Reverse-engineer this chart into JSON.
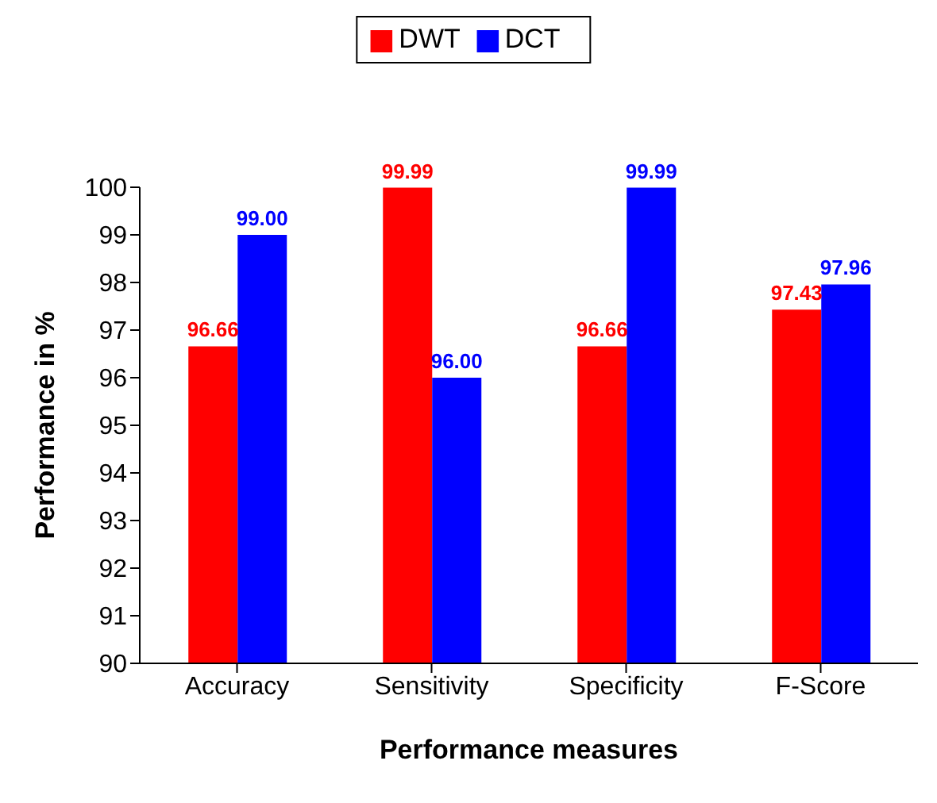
{
  "chart_data": {
    "type": "bar",
    "xlabel": "Performance measures",
    "ylabel": "Performance in %",
    "categories": [
      "Accuracy",
      "Sensitivity",
      "Specificity",
      "F-Score"
    ],
    "series": [
      {
        "name": "DWT",
        "color": "#ff0000",
        "values": [
          96.66,
          99.99,
          96.66,
          97.43
        ],
        "value_labels": [
          "96.66",
          "99.99",
          "96.66",
          "97.43"
        ]
      },
      {
        "name": "DCT",
        "color": "#0000ff",
        "values": [
          99.0,
          96.0,
          99.99,
          97.96
        ],
        "value_labels": [
          "99.00",
          "96.00",
          "99.99",
          "97.96"
        ]
      }
    ],
    "ylim": [
      90,
      100
    ],
    "yticks": [
      90,
      91,
      92,
      93,
      94,
      95,
      96,
      97,
      98,
      99,
      100
    ],
    "legend": "top",
    "grid": false
  }
}
